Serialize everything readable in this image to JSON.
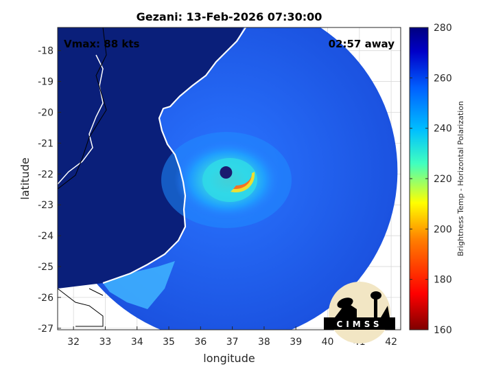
{
  "chart_data": {
    "type": "heatmap",
    "title": "Gezani: 13-Feb-2026 07:30:00",
    "xlabel": "longitude",
    "ylabel": "latitude",
    "xlim": [
      31.5,
      42.3
    ],
    "ylim": [
      -27.05,
      -17.25
    ],
    "xticks": [
      32,
      33,
      34,
      35,
      36,
      37,
      38,
      39,
      40,
      41,
      42
    ],
    "yticks": [
      -18,
      -19,
      -20,
      -21,
      -22,
      -23,
      -24,
      -25,
      -26,
      -27
    ],
    "grid": true,
    "annotations": {
      "left": "Vmax: 88 kts",
      "right": "02:57 away"
    },
    "storm_center": {
      "lon": 36.8,
      "lat": -21.95
    },
    "swath": {
      "center_lon": 36.8,
      "center_lat": -21.9,
      "radius_deg": 5.4
    },
    "colorbar": {
      "label": "Brightness Temp - Horizontal Polarization",
      "min": 160,
      "max": 280,
      "ticks": [
        280,
        260,
        240,
        220,
        200,
        180,
        160
      ]
    },
    "logo_text": "CIMSS"
  },
  "colors": {
    "background_field": "#0a2a8a",
    "land": "#0a1f7a",
    "ocean": "#1b57e0",
    "eye": "#1a1a70",
    "eyewall_hot": "#ff6a1a"
  }
}
